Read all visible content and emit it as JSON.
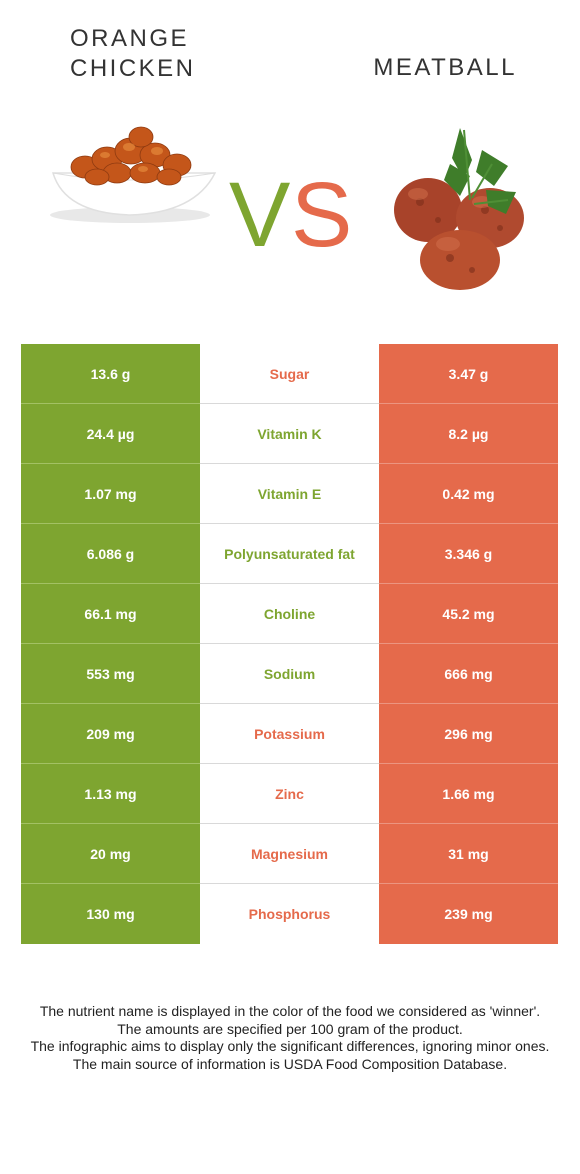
{
  "left_food": {
    "name": "ORANGE\nCHICKEN",
    "color": "#7ea530"
  },
  "right_food": {
    "name": "MEATBALL",
    "color": "#e56a4b"
  },
  "vs_label": "VS",
  "rows": [
    {
      "left": "13.6 g",
      "nutrient": "Sugar",
      "right": "3.47 g",
      "winner": "right"
    },
    {
      "left": "24.4 µg",
      "nutrient": "Vitamin K",
      "right": "8.2 µg",
      "winner": "left"
    },
    {
      "left": "1.07 mg",
      "nutrient": "Vitamin E",
      "right": "0.42 mg",
      "winner": "left"
    },
    {
      "left": "6.086 g",
      "nutrient": "Polyunsaturated fat",
      "right": "3.346 g",
      "winner": "left"
    },
    {
      "left": "66.1 mg",
      "nutrient": "Choline",
      "right": "45.2 mg",
      "winner": "left"
    },
    {
      "left": "553 mg",
      "nutrient": "Sodium",
      "right": "666 mg",
      "winner": "left"
    },
    {
      "left": "209 mg",
      "nutrient": "Potassium",
      "right": "296 mg",
      "winner": "right"
    },
    {
      "left": "1.13 mg",
      "nutrient": "Zinc",
      "right": "1.66 mg",
      "winner": "right"
    },
    {
      "left": "20 mg",
      "nutrient": "Magnesium",
      "right": "31 mg",
      "winner": "right"
    },
    {
      "left": "130 mg",
      "nutrient": "Phosphorus",
      "right": "239 mg",
      "winner": "right"
    }
  ],
  "footer": [
    "The nutrient name is displayed in the color of the food we considered as 'winner'.",
    "The amounts are specified per 100 gram of the product.",
    "The infographic aims to display only the significant differences, ignoring minor ones.",
    "The main source of information is USDA Food Composition Database."
  ]
}
